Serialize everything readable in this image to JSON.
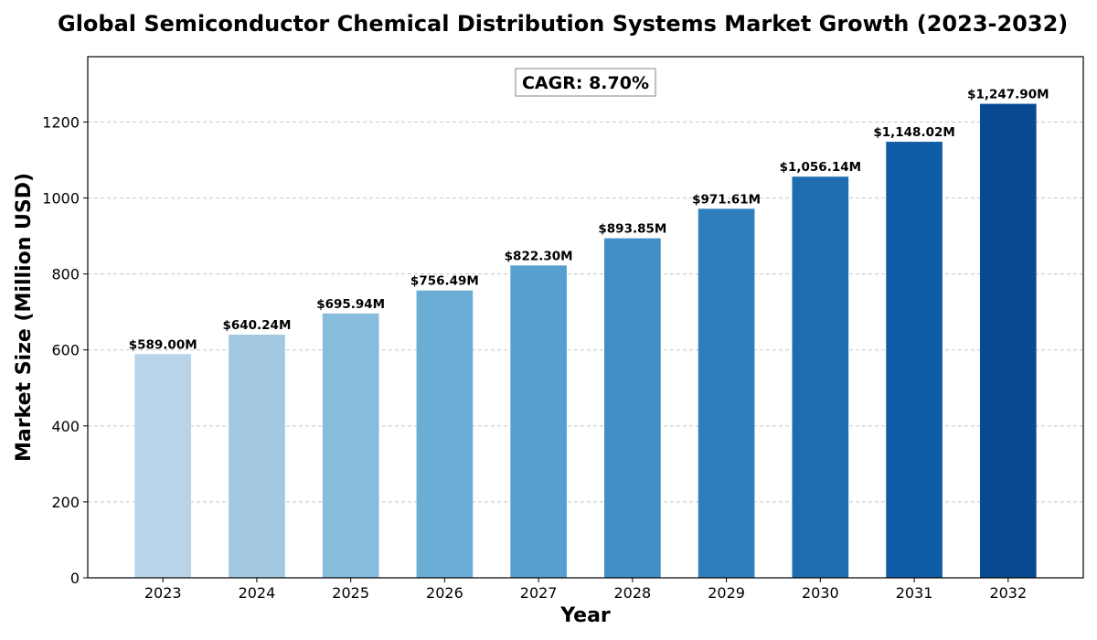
{
  "chart_data": {
    "type": "bar",
    "title": "Global Semiconductor Chemical Distribution Systems Market Growth (2023-2032)",
    "xlabel": "Year",
    "ylabel": "Market Size (Million USD)",
    "categories": [
      "2023",
      "2024",
      "2025",
      "2026",
      "2027",
      "2028",
      "2029",
      "2030",
      "2031",
      "2032"
    ],
    "values": [
      589.0,
      640.24,
      695.94,
      756.49,
      822.3,
      893.85,
      971.61,
      1056.14,
      1148.02,
      1247.9
    ],
    "value_labels": [
      "$589.00M",
      "$640.24M",
      "$695.94M",
      "$756.49M",
      "$822.30M",
      "$893.85M",
      "$971.61M",
      "$1,056.14M",
      "$1,148.02M",
      "$1,247.90M"
    ],
    "ylim": [
      0,
      1372
    ],
    "yticks": [
      0,
      200,
      400,
      600,
      800,
      1000,
      1200
    ],
    "grid": true,
    "colors": [
      "#b9d4e9",
      "#a3c9e1",
      "#87bcdd",
      "#6badd5",
      "#569fcf",
      "#408ec5",
      "#2f7ebc",
      "#1f6db1",
      "#115ca6",
      "#084a91"
    ],
    "annotation": "CAGR: 8.70%"
  }
}
